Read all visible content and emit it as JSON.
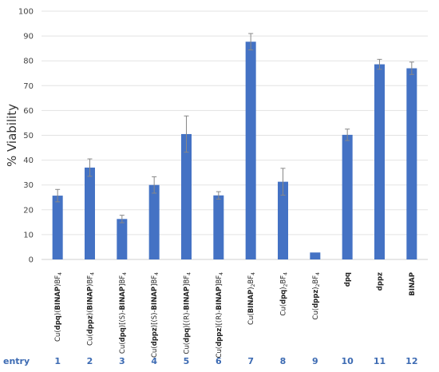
{
  "chart_data": {
    "type": "bar",
    "ylabel": "% Viability",
    "ylim": [
      0,
      100
    ],
    "yticks": [
      0,
      10,
      20,
      30,
      40,
      50,
      60,
      70,
      80,
      90,
      100
    ],
    "grid": true,
    "bar_color": "#4472c4",
    "entry_label": "entry",
    "categories": [
      [
        {
          "t": "Cu("
        },
        {
          "t": "dpq",
          "b": true
        },
        {
          "t": ")("
        },
        {
          "t": "BINAP",
          "b": true
        },
        {
          "t": ")BF"
        },
        {
          "t": "4",
          "sub": true
        }
      ],
      [
        {
          "t": "Cu("
        },
        {
          "t": "dppz",
          "b": true
        },
        {
          "t": ")("
        },
        {
          "t": "BINAP",
          "b": true
        },
        {
          "t": ")BF"
        },
        {
          "t": "4",
          "sub": true
        }
      ],
      [
        {
          "t": "Cu("
        },
        {
          "t": "dpq",
          "b": true
        },
        {
          "t": ")[(S)-"
        },
        {
          "t": "BINAP",
          "b": true
        },
        {
          "t": "]BF"
        },
        {
          "t": "4",
          "sub": true
        }
      ],
      [
        {
          "t": "Cu("
        },
        {
          "t": "dppz",
          "b": true
        },
        {
          "t": ")[(S)-"
        },
        {
          "t": "BINAP",
          "b": true
        },
        {
          "t": "]BF"
        },
        {
          "t": "4",
          "sub": true
        }
      ],
      [
        {
          "t": "Cu("
        },
        {
          "t": "dpq",
          "b": true
        },
        {
          "t": ")[(R)-"
        },
        {
          "t": "BINAP",
          "b": true
        },
        {
          "t": "]BF"
        },
        {
          "t": "4",
          "sub": true
        }
      ],
      [
        {
          "t": "Cu("
        },
        {
          "t": "dppz",
          "b": true
        },
        {
          "t": ")[(R)-"
        },
        {
          "t": "BINAP",
          "b": true
        },
        {
          "t": "]BF"
        },
        {
          "t": "4",
          "sub": true
        }
      ],
      [
        {
          "t": "Cu("
        },
        {
          "t": "BINAP",
          "b": true
        },
        {
          "t": ")"
        },
        {
          "t": "2",
          "sub": true
        },
        {
          "t": "BF"
        },
        {
          "t": "4",
          "sub": true
        }
      ],
      [
        {
          "t": "Cu("
        },
        {
          "t": "dpq",
          "b": true
        },
        {
          "t": ")"
        },
        {
          "t": "2",
          "sub": true
        },
        {
          "t": "BF"
        },
        {
          "t": "4",
          "sub": true
        }
      ],
      [
        {
          "t": "Cu("
        },
        {
          "t": "dppz",
          "b": true
        },
        {
          "t": ")"
        },
        {
          "t": "2",
          "sub": true
        },
        {
          "t": "BF"
        },
        {
          "t": "4",
          "sub": true
        }
      ],
      [
        {
          "t": "dpq",
          "b": true
        }
      ],
      [
        {
          "t": "dppz",
          "b": true
        }
      ],
      [
        {
          "t": "BINAP",
          "b": true
        }
      ]
    ],
    "entries": [
      "1",
      "2",
      "3",
      "4",
      "5",
      "6",
      "7",
      "8",
      "9",
      "10",
      "11",
      "12"
    ],
    "values": [
      25.7,
      37.0,
      16.3,
      30.0,
      50.5,
      25.8,
      87.7,
      31.3,
      2.8,
      50.2,
      78.6,
      77.0
    ],
    "errors": [
      2.5,
      3.5,
      1.5,
      3.3,
      7.3,
      1.5,
      3.3,
      5.4,
      0.0,
      2.3,
      2.0,
      2.5
    ]
  }
}
